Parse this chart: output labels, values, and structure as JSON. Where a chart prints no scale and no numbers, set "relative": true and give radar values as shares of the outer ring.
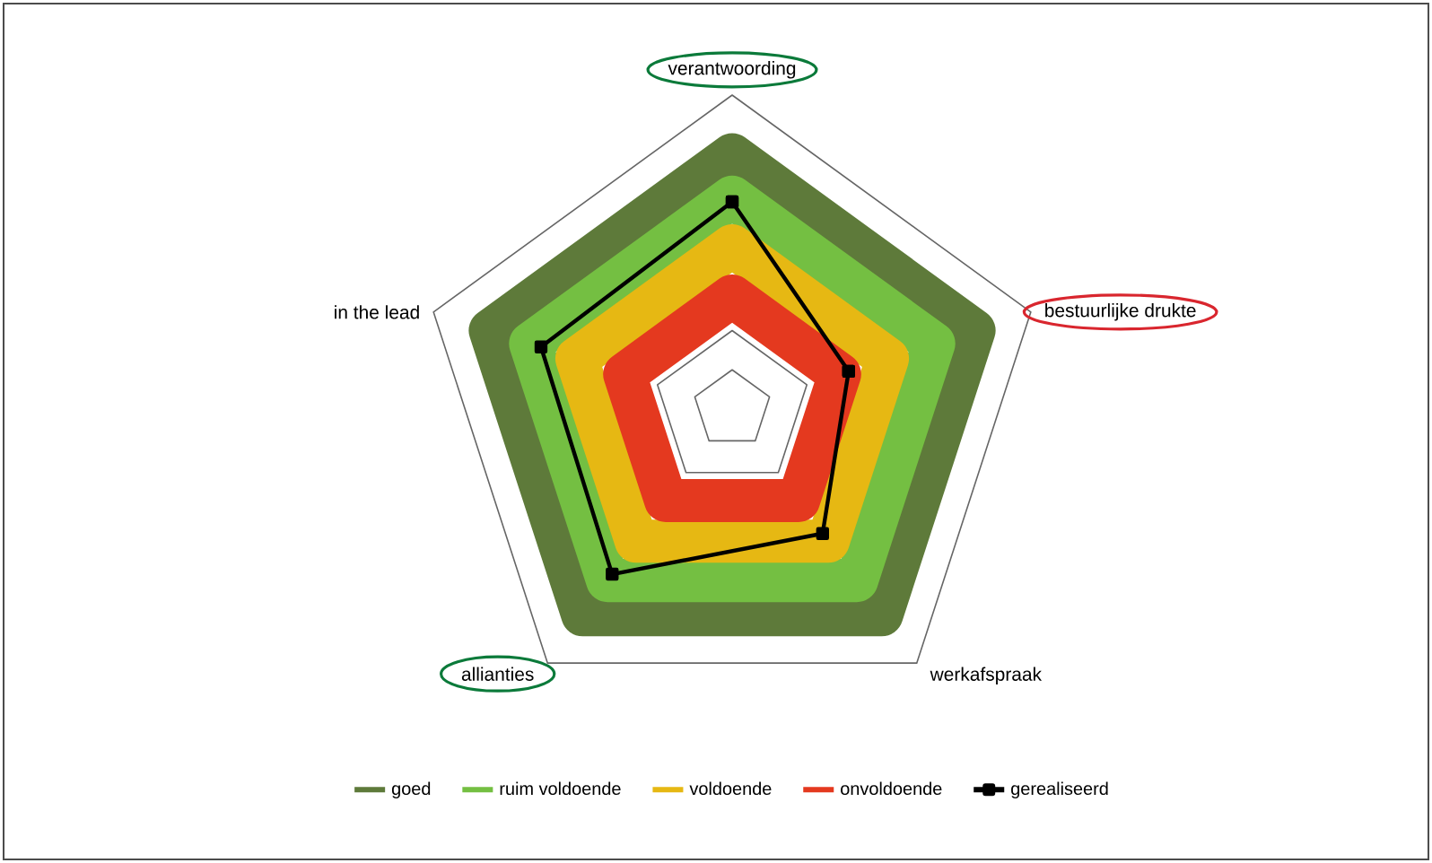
{
  "chart_data": {
    "type": "radar",
    "relative": true,
    "grid": true,
    "legend": "bottom",
    "categories": [
      "verantwoording",
      "bestuurlijke drukte",
      "werkafspraak",
      "allianties",
      "in the lead"
    ],
    "series": [
      {
        "name": "goed",
        "color": "#5e7a3a",
        "values": [
          0.81,
          0.81,
          0.81,
          0.81,
          0.81
        ]
      },
      {
        "name": "ruim voldoende",
        "color": "#74bf42",
        "values": [
          0.675,
          0.675,
          0.675,
          0.675,
          0.675
        ]
      },
      {
        "name": "voldoende",
        "color": "#e6b813",
        "values": [
          0.52,
          0.52,
          0.52,
          0.52,
          0.52
        ]
      },
      {
        "name": "onvoldoende",
        "color": "#e4391f",
        "values": [
          0.36,
          0.36,
          0.36,
          0.36,
          0.36
        ]
      },
      {
        "name": "gerealiseerd",
        "color": "#000000",
        "marker": "square",
        "values": [
          0.66,
          0.39,
          0.49,
          0.65,
          0.64
        ]
      }
    ]
  }
}
